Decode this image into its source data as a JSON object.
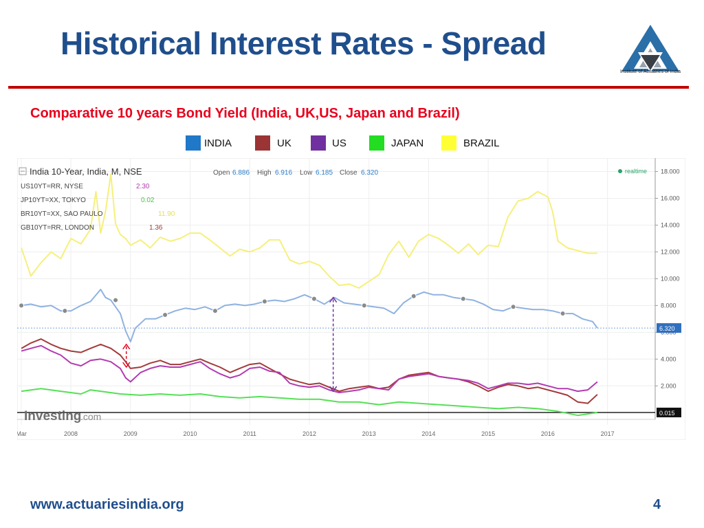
{
  "slide": {
    "title": "Historical Interest Rates - Spread",
    "logo_text": "Institute of Actuaries of India",
    "subtitle": "Comparative 10 years  Bond Yield (India, UK,US, Japan and Brazil)",
    "footer_url": "www.actuariesindia.org",
    "page_number": "4"
  },
  "legend": [
    {
      "label": "INDIA",
      "color": "#1f78c8"
    },
    {
      "label": "UK",
      "color": "#9b3434"
    },
    {
      "label": "US",
      "color": "#7030a0"
    },
    {
      "label": "JAPAN",
      "color": "#22dd22"
    },
    {
      "label": "BRAZIL",
      "color": "#ffff33"
    }
  ],
  "chart_header": {
    "main_label": "India 10-Year, India, M, NSE",
    "open_label": "Open",
    "open": "6.886",
    "high_label": "High",
    "high": "6.916",
    "low_label": "Low",
    "low": "6.185",
    "close_label": "Close",
    "close": "6.320",
    "realtime": "realtime",
    "overlays": [
      {
        "label": "US10YT=RR, NYSE",
        "value": "2.30",
        "color": "#b23ab2"
      },
      {
        "label": "JP10YT=XX, TOKYO",
        "value": "0.02",
        "color": "#3ecb3e"
      },
      {
        "label": "BR10YT=XX, SAO PAULO",
        "value": "11.90",
        "color": "#f5f07a"
      },
      {
        "label": "GB10YT=RR, LONDON",
        "value": "1.36",
        "color": "#a33a3a"
      }
    ],
    "watermark_main": "Investing",
    "watermark_suffix": ".com"
  },
  "chart_data": {
    "type": "line",
    "x_ticks": [
      "Mar",
      "2008",
      "2009",
      "2010",
      "2011",
      "2012",
      "2013",
      "2014",
      "2015",
      "2016",
      "2017"
    ],
    "y_ticks": [
      "18.000",
      "16.000",
      "14.000",
      "12.000",
      "10.000",
      "8.000",
      "6.000",
      "4.000",
      "2.000"
    ],
    "ylim": [
      -0.5,
      19
    ],
    "xlim": [
      2007.1,
      2017.8
    ],
    "last_value_labels": [
      {
        "series": "India",
        "value": "6.320"
      },
      {
        "series": "Japan",
        "value": "0.015"
      }
    ],
    "series": [
      {
        "name": "India",
        "color": "#8fb2e0",
        "x": [
          2007.17,
          2007.33,
          2007.5,
          2007.67,
          2007.83,
          2008.0,
          2008.17,
          2008.33,
          2008.5,
          2008.58,
          2008.67,
          2008.83,
          2008.92,
          2009.0,
          2009.08,
          2009.25,
          2009.42,
          2009.58,
          2009.75,
          2009.92,
          2010.08,
          2010.25,
          2010.42,
          2010.58,
          2010.75,
          2010.92,
          2011.08,
          2011.25,
          2011.42,
          2011.58,
          2011.75,
          2011.92,
          2012.08,
          2012.25,
          2012.42,
          2012.58,
          2012.75,
          2012.92,
          2013.08,
          2013.25,
          2013.42,
          2013.58,
          2013.75,
          2013.92,
          2014.08,
          2014.25,
          2014.42,
          2014.58,
          2014.75,
          2014.92,
          2015.08,
          2015.25,
          2015.42,
          2015.58,
          2015.75,
          2015.92,
          2016.08,
          2016.25,
          2016.42,
          2016.58,
          2016.75,
          2016.83
        ],
        "y": [
          8.0,
          8.1,
          7.9,
          8.0,
          7.6,
          7.6,
          8.0,
          8.3,
          9.2,
          8.6,
          8.4,
          7.4,
          6.1,
          5.3,
          6.3,
          7.0,
          7.0,
          7.3,
          7.6,
          7.8,
          7.7,
          7.9,
          7.6,
          8.0,
          8.1,
          8.0,
          8.1,
          8.3,
          8.4,
          8.3,
          8.5,
          8.8,
          8.5,
          8.1,
          8.6,
          8.2,
          8.1,
          8.0,
          7.9,
          7.8,
          7.4,
          8.2,
          8.7,
          9.0,
          8.8,
          8.8,
          8.6,
          8.5,
          8.4,
          8.1,
          7.7,
          7.6,
          7.9,
          7.8,
          7.7,
          7.7,
          7.6,
          7.4,
          7.4,
          7.0,
          6.8,
          6.32
        ]
      },
      {
        "name": "UK",
        "color": "#a33a3a",
        "x": [
          2007.17,
          2007.33,
          2007.5,
          2007.67,
          2007.83,
          2008.0,
          2008.17,
          2008.33,
          2008.5,
          2008.67,
          2008.83,
          2008.92,
          2009.0,
          2009.17,
          2009.33,
          2009.5,
          2009.67,
          2009.83,
          2010.0,
          2010.17,
          2010.33,
          2010.5,
          2010.67,
          2010.83,
          2011.0,
          2011.17,
          2011.33,
          2011.5,
          2011.67,
          2011.83,
          2012.0,
          2012.17,
          2012.33,
          2012.5,
          2012.67,
          2012.83,
          2013.0,
          2013.17,
          2013.33,
          2013.5,
          2013.67,
          2013.83,
          2014.0,
          2014.17,
          2014.33,
          2014.5,
          2014.67,
          2014.83,
          2015.0,
          2015.17,
          2015.33,
          2015.5,
          2015.67,
          2015.83,
          2016.0,
          2016.17,
          2016.33,
          2016.5,
          2016.67,
          2016.83
        ],
        "y": [
          4.8,
          5.2,
          5.5,
          5.1,
          4.8,
          4.6,
          4.5,
          4.8,
          5.1,
          4.8,
          4.3,
          3.8,
          3.3,
          3.4,
          3.7,
          3.9,
          3.6,
          3.6,
          3.8,
          4.0,
          3.7,
          3.4,
          3.0,
          3.3,
          3.6,
          3.7,
          3.3,
          2.9,
          2.5,
          2.3,
          2.1,
          2.2,
          1.9,
          1.6,
          1.8,
          1.9,
          2.0,
          1.8,
          1.9,
          2.5,
          2.8,
          2.9,
          3.0,
          2.7,
          2.6,
          2.5,
          2.3,
          2.0,
          1.6,
          1.9,
          2.1,
          2.0,
          1.8,
          1.9,
          1.7,
          1.5,
          1.3,
          0.8,
          0.7,
          1.36
        ]
      },
      {
        "name": "US",
        "color": "#b23ab2",
        "x": [
          2007.17,
          2007.33,
          2007.5,
          2007.67,
          2007.83,
          2008.0,
          2008.17,
          2008.33,
          2008.5,
          2008.67,
          2008.83,
          2008.92,
          2009.0,
          2009.17,
          2009.33,
          2009.5,
          2009.67,
          2009.83,
          2010.0,
          2010.17,
          2010.33,
          2010.5,
          2010.67,
          2010.83,
          2011.0,
          2011.17,
          2011.33,
          2011.5,
          2011.67,
          2011.83,
          2012.0,
          2012.17,
          2012.33,
          2012.5,
          2012.67,
          2012.83,
          2013.0,
          2013.17,
          2013.33,
          2013.5,
          2013.67,
          2013.83,
          2014.0,
          2014.17,
          2014.33,
          2014.5,
          2014.67,
          2014.83,
          2015.0,
          2015.17,
          2015.33,
          2015.5,
          2015.67,
          2015.83,
          2016.0,
          2016.17,
          2016.33,
          2016.5,
          2016.67,
          2016.83
        ],
        "y": [
          4.6,
          4.8,
          5.0,
          4.6,
          4.3,
          3.7,
          3.5,
          3.9,
          4.0,
          3.8,
          3.3,
          2.6,
          2.3,
          3.0,
          3.3,
          3.5,
          3.4,
          3.4,
          3.6,
          3.8,
          3.3,
          2.9,
          2.6,
          2.8,
          3.3,
          3.4,
          3.1,
          3.0,
          2.2,
          2.0,
          1.9,
          2.0,
          1.7,
          1.5,
          1.6,
          1.7,
          1.9,
          1.8,
          1.7,
          2.5,
          2.7,
          2.8,
          2.9,
          2.7,
          2.6,
          2.5,
          2.4,
          2.2,
          1.8,
          2.0,
          2.2,
          2.2,
          2.1,
          2.2,
          2.0,
          1.8,
          1.8,
          1.6,
          1.7,
          2.3
        ]
      },
      {
        "name": "Japan",
        "color": "#55e055",
        "x": [
          2007.17,
          2007.5,
          2007.83,
          2008.17,
          2008.33,
          2008.5,
          2008.83,
          2009.17,
          2009.5,
          2009.83,
          2010.17,
          2010.5,
          2010.83,
          2011.17,
          2011.5,
          2011.83,
          2012.17,
          2012.5,
          2012.83,
          2013.17,
          2013.5,
          2013.83,
          2014.17,
          2014.5,
          2014.83,
          2015.17,
          2015.5,
          2015.83,
          2016.17,
          2016.5,
          2016.83
        ],
        "y": [
          1.6,
          1.8,
          1.6,
          1.4,
          1.7,
          1.6,
          1.4,
          1.3,
          1.4,
          1.3,
          1.4,
          1.2,
          1.1,
          1.2,
          1.1,
          1.0,
          1.0,
          0.8,
          0.8,
          0.6,
          0.8,
          0.7,
          0.6,
          0.5,
          0.4,
          0.3,
          0.4,
          0.3,
          0.1,
          -0.2,
          0.015
        ]
      },
      {
        "name": "Brazil",
        "color": "#f5f07a",
        "x": [
          2007.17,
          2007.33,
          2007.5,
          2007.67,
          2007.83,
          2008.0,
          2008.17,
          2008.33,
          2008.42,
          2008.5,
          2008.58,
          2008.67,
          2008.75,
          2008.83,
          2008.92,
          2009.0,
          2009.17,
          2009.33,
          2009.5,
          2009.67,
          2009.83,
          2010.0,
          2010.17,
          2010.33,
          2010.5,
          2010.67,
          2010.83,
          2011.0,
          2011.17,
          2011.33,
          2011.5,
          2011.67,
          2011.83,
          2012.0,
          2012.17,
          2012.33,
          2012.5,
          2012.67,
          2012.83,
          2013.0,
          2013.17,
          2013.33,
          2013.5,
          2013.67,
          2013.83,
          2014.0,
          2014.17,
          2014.33,
          2014.5,
          2014.67,
          2014.83,
          2015.0,
          2015.17,
          2015.33,
          2015.5,
          2015.67,
          2015.83,
          2016.0,
          2016.08,
          2016.17,
          2016.33,
          2016.5,
          2016.67,
          2016.83
        ],
        "y": [
          12.3,
          10.2,
          11.2,
          12.0,
          11.5,
          13.0,
          12.6,
          13.7,
          16.5,
          13.4,
          15.0,
          17.8,
          14.1,
          13.3,
          13.0,
          12.5,
          12.9,
          12.3,
          13.1,
          12.8,
          13.0,
          13.4,
          13.4,
          12.9,
          12.3,
          11.7,
          12.2,
          12.0,
          12.3,
          12.9,
          12.9,
          11.4,
          11.1,
          11.3,
          11.0,
          10.2,
          9.5,
          9.6,
          9.3,
          9.8,
          10.3,
          11.8,
          12.8,
          11.6,
          12.8,
          13.3,
          13.0,
          12.5,
          11.9,
          12.6,
          11.8,
          12.5,
          12.4,
          14.6,
          15.8,
          16.0,
          16.5,
          16.1,
          15.0,
          12.8,
          12.3,
          12.1,
          11.9,
          11.9
        ]
      }
    ],
    "annotations": [
      {
        "type": "double-arrow",
        "color": "#e8001c",
        "x": 2008.93,
        "y1": 5.1,
        "y2": 3.4
      },
      {
        "type": "double-arrow",
        "color": "#7030a0",
        "x": 2012.4,
        "y1": 8.6,
        "y2": 1.6
      }
    ]
  }
}
